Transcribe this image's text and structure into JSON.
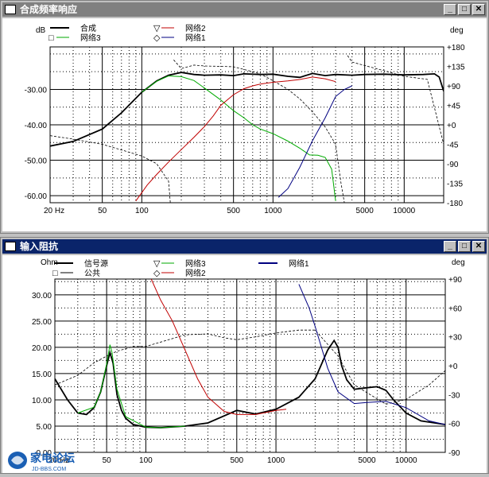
{
  "windows": {
    "top": {
      "title": "合成频率响应"
    },
    "bottom": {
      "title": "输入阻抗"
    }
  },
  "logo": {
    "text": "家电论坛",
    "sub": "JD-BBS.COM"
  },
  "colors": {
    "sum": "#000000",
    "net2": "#c00000",
    "net1": "#000080",
    "net3": "#00aa00",
    "phase": "#000000"
  },
  "chart_data": [
    {
      "type": "line",
      "title": "合成频率响应",
      "ylabel": "dB",
      "y2label": "deg",
      "x_scale": "log",
      "xlim": [
        20,
        20000
      ],
      "ylim": [
        -62,
        -18
      ],
      "y2lim": [
        -180,
        180
      ],
      "x_ticks": [
        "20 Hz",
        "50",
        "100",
        "500",
        "1000",
        "5000",
        "10000"
      ],
      "x_tick_values": [
        20,
        50,
        100,
        500,
        1000,
        5000,
        10000
      ],
      "y_ticks": [
        "-30.00",
        "-40.00",
        "-50.00",
        "-60.00"
      ],
      "y_tick_values": [
        -30,
        -40,
        -50,
        -60
      ],
      "y2_ticks": [
        "+180",
        "+135",
        "+90",
        "+45",
        "+0",
        "-45",
        "-90",
        "-135",
        "-180"
      ],
      "y2_tick_values": [
        180,
        135,
        90,
        45,
        0,
        -45,
        -90,
        -135,
        -180
      ],
      "legend": [
        {
          "name": "合成",
          "marker": "line",
          "color": "#000000"
        },
        {
          "name": "网络3",
          "marker": "□",
          "color": "#00aa00"
        },
        {
          "name": "网络2",
          "marker": "▽",
          "color": "#c00000"
        },
        {
          "name": "网络1",
          "marker": "◇",
          "color": "#000080"
        }
      ],
      "series": [
        {
          "name": "合成",
          "color": "#000000",
          "width": 1.8,
          "x": [
            20,
            30,
            50,
            70,
            100,
            130,
            160,
            200,
            250,
            300,
            400,
            500,
            600,
            800,
            1000,
            1300,
            1600,
            2000,
            2500,
            3000,
            4000,
            5000,
            7000,
            10000,
            14000,
            17000,
            18500,
            20000
          ],
          "y": [
            -46,
            -44.7,
            -41.2,
            -36.6,
            -30.8,
            -27.6,
            -26,
            -25.2,
            -25.8,
            -26,
            -25.9,
            -26.1,
            -25.6,
            -25.8,
            -25.7,
            -26.3,
            -26.6,
            -25.5,
            -26.1,
            -25.8,
            -26,
            -25.8,
            -25.7,
            -25.9,
            -25.8,
            -25.6,
            -26.5,
            -30.5
          ]
        },
        {
          "name": "网络3",
          "color": "#00aa00",
          "width": 1,
          "x": [
            100,
            130,
            160,
            200,
            250,
            300,
            400,
            500,
            600,
            700,
            800,
            1000,
            1300,
            1600,
            1900,
            2200,
            2500,
            2800,
            3000
          ],
          "y": [
            -30.8,
            -27.7,
            -26.2,
            -26.4,
            -27.5,
            -29.6,
            -33,
            -36,
            -38,
            -40,
            -41.2,
            -42.5,
            -44.6,
            -46.6,
            -48.5,
            -48.6,
            -49.2,
            -52.5,
            -61.5
          ]
        },
        {
          "name": "网络2",
          "color": "#c00000",
          "width": 1,
          "x": [
            90,
            110,
            130,
            160,
            200,
            250,
            300,
            350,
            400,
            500,
            600,
            700,
            800,
            1000,
            1300,
            1600,
            2000,
            2500,
            3000
          ],
          "y": [
            -61.5,
            -57,
            -54,
            -50.5,
            -47,
            -43.5,
            -40.5,
            -37.5,
            -34.5,
            -31.5,
            -29.8,
            -29,
            -28.5,
            -28,
            -27.6,
            -27.2,
            -26.5,
            -27,
            -27.8
          ]
        },
        {
          "name": "网络1",
          "color": "#000080",
          "width": 1,
          "x": [
            1100,
            1300,
            1600,
            2000,
            2500,
            3000,
            3500,
            4000
          ],
          "y": [
            -60.5,
            -58,
            -52,
            -44.5,
            -38,
            -32,
            -30,
            -29
          ]
        }
      ],
      "phase_series": [
        {
          "name": "phase",
          "color": "#000000",
          "dash": true,
          "axis": "y2",
          "x": [
            20,
            30,
            50,
            70,
            100,
            130,
            150,
            160,
            165,
            175,
            200,
            250,
            300,
            400,
            500,
            600,
            800,
            1000,
            1300,
            1600,
            2000,
            2500,
            3000,
            3300,
            3500,
            3700,
            4000,
            5000,
            7000,
            10000,
            15000,
            20000
          ],
          "y2": [
            -25,
            -33,
            -45,
            -58,
            -72,
            -90,
            -118,
            -130,
            -180,
            150,
            130,
            138,
            136,
            135,
            134,
            128,
            118,
            102,
            82,
            60,
            30,
            -5,
            -45,
            -135,
            -180,
            160,
            145,
            137,
            125,
            112,
            105,
            -45
          ]
        }
      ]
    },
    {
      "type": "line",
      "title": "输入阻抗",
      "ylabel": "Ohm",
      "y2label": "deg",
      "x_scale": "log",
      "xlim": [
        20,
        20000
      ],
      "ylim": [
        0,
        33
      ],
      "y2lim": [
        -90,
        90
      ],
      "x_ticks": [
        "20 Hz",
        "50",
        "100",
        "500",
        "1000",
        "5000",
        "10000"
      ],
      "x_tick_values": [
        20,
        50,
        100,
        500,
        1000,
        5000,
        10000
      ],
      "y_ticks": [
        "30.00",
        "25.00",
        "20.00",
        "15.00",
        "10.00",
        "5.00",
        "0.00"
      ],
      "y_tick_values": [
        30,
        25,
        20,
        15,
        10,
        5,
        0
      ],
      "y2_ticks": [
        "+90",
        "+60",
        "+30",
        "+0",
        "-30",
        "-60",
        "-90"
      ],
      "y2_tick_values": [
        90,
        60,
        30,
        0,
        -30,
        -60,
        -90
      ],
      "legend": [
        {
          "name": "信号源",
          "marker": "line",
          "color": "#000000"
        },
        {
          "name": "公共",
          "marker": "□",
          "color": "#000000"
        },
        {
          "name": "网络3",
          "marker": "▽",
          "color": "#00aa00"
        },
        {
          "name": "网络2",
          "marker": "◇",
          "color": "#c00000"
        },
        {
          "name": "网络1",
          "marker": "line",
          "color": "#000080"
        }
      ],
      "series": [
        {
          "name": "信号源",
          "color": "#000000",
          "width": 1.8,
          "x": [
            20,
            25,
            30,
            35,
            40,
            45,
            50,
            53,
            56,
            60,
            65,
            70,
            80,
            100,
            130,
            200,
            300,
            500,
            700,
            1000,
            1500,
            2000,
            2500,
            2800,
            3000,
            3200,
            3500,
            4000,
            5000,
            6000,
            7000,
            8000,
            10000,
            13000,
            20000
          ],
          "y": [
            14,
            10,
            7.5,
            7.2,
            8.5,
            11.5,
            16.5,
            19,
            17,
            11,
            8,
            6.5,
            5.3,
            4.8,
            4.7,
            5,
            5.6,
            8,
            7.3,
            8.2,
            10.5,
            14,
            19.5,
            21.3,
            20,
            16.5,
            13.8,
            12,
            12.3,
            12.5,
            11.8,
            10,
            7.5,
            6,
            5.3
          ]
        },
        {
          "name": "网络3",
          "color": "#00aa00",
          "width": 1,
          "x": [
            30,
            40,
            45,
            50,
            53,
            55,
            60,
            70,
            100,
            130,
            200
          ],
          "y": [
            7.5,
            8.6,
            11.5,
            16.8,
            20.5,
            19,
            12,
            6.8,
            4.8,
            4.7,
            5
          ]
        },
        {
          "name": "网络2",
          "color": "#c00000",
          "width": 1,
          "x": [
            110,
            130,
            160,
            200,
            250,
            300,
            400,
            500,
            700,
            1000,
            1200
          ],
          "y": [
            33,
            29,
            25,
            19.5,
            14,
            10.5,
            7.8,
            7.2,
            7.2,
            8,
            8.2
          ]
        },
        {
          "name": "网络1",
          "color": "#000080",
          "width": 1,
          "x": [
            1500,
            1800,
            2000,
            2500,
            3000,
            4000,
            5000,
            7000,
            10000,
            15000,
            20000
          ],
          "y": [
            32,
            27.5,
            24,
            16,
            11.5,
            9.3,
            9.5,
            9.7,
            8.5,
            6,
            5.3
          ]
        }
      ],
      "phase_series": [
        {
          "name": "phase",
          "color": "#000000",
          "dash": true,
          "axis": "y2",
          "x": [
            20,
            30,
            40,
            50,
            60,
            80,
            100,
            150,
            200,
            300,
            400,
            500,
            700,
            1000,
            1500,
            2000,
            3000,
            4000,
            5000,
            7000,
            10000,
            15000,
            20000
          ],
          "y2": [
            -20,
            -10,
            3,
            10,
            15,
            20,
            20,
            27,
            32,
            33,
            29,
            27,
            30,
            34,
            37,
            37,
            10,
            -20,
            -28,
            -40,
            -35,
            -20,
            -5
          ]
        }
      ]
    }
  ]
}
